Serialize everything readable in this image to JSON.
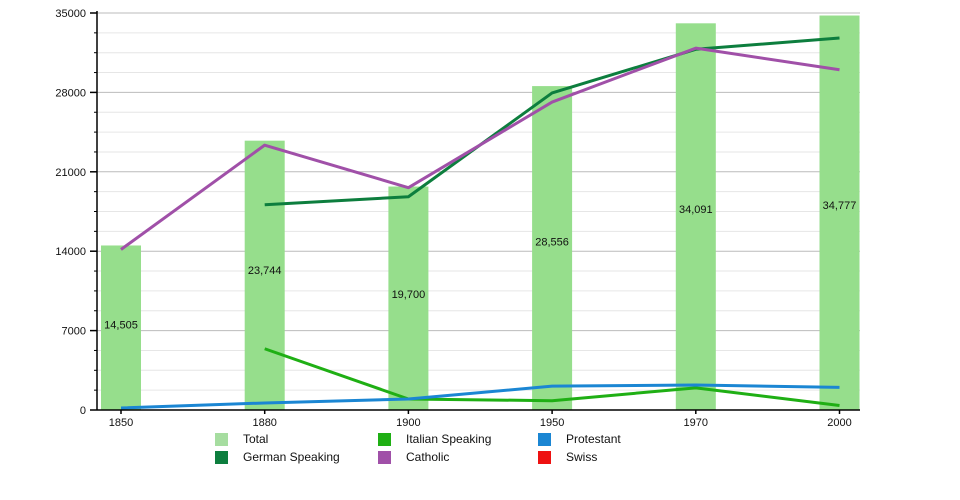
{
  "chart_data": {
    "type": "bar",
    "title": "",
    "xlabel": "",
    "ylabel": "",
    "categories": [
      "1850",
      "1880",
      "1900",
      "1950",
      "1970",
      "2000"
    ],
    "ylim": [
      0,
      35000
    ],
    "y_ticks": [
      0,
      7000,
      14000,
      21000,
      28000,
      35000
    ],
    "y_minor_step": 1750,
    "grid": "horizontal-major-and-minor",
    "legend_position": "bottom",
    "bar_series": {
      "name": "Total",
      "color": "#96de8c",
      "values": [
        14505,
        23744,
        19700,
        28556,
        34091,
        34777
      ],
      "value_labels": [
        "14,505",
        "23,744",
        "19,700",
        "28,556",
        "34,091",
        "34,777"
      ]
    },
    "line_series": [
      {
        "name": "German Speaking",
        "color": "#0d7e3e",
        "values": [
          null,
          18100,
          18800,
          27950,
          31800,
          32800
        ]
      },
      {
        "name": "Italian Speaking",
        "color": "#1faf14",
        "values": [
          null,
          5400,
          970,
          820,
          1950,
          400
        ]
      },
      {
        "name": "Catholic",
        "color": "#a050a8",
        "values": [
          14150,
          23350,
          19600,
          27150,
          31900,
          30000
        ]
      },
      {
        "name": "Protestant",
        "color": "#1b86d3",
        "values": [
          175,
          620,
          970,
          2100,
          2200,
          2000
        ]
      },
      {
        "name": "Swiss",
        "color": "#ee1111",
        "values": [
          null,
          null,
          null,
          null,
          null,
          null
        ]
      }
    ],
    "colors": {
      "axis": "#000000",
      "major_grid": "#bbbbbb",
      "minor_grid": "#e6e6e6",
      "tick_label": "#111111",
      "bar_value_label": "#111111"
    }
  },
  "legend": {
    "columns": [
      [
        {
          "label": "Total",
          "color": "#a6dda0"
        },
        {
          "label": "German Speaking",
          "color": "#0d7e3e"
        }
      ],
      [
        {
          "label": "Italian Speaking",
          "color": "#1faf14"
        },
        {
          "label": "Catholic",
          "color": "#a050a8"
        }
      ],
      [
        {
          "label": "Protestant",
          "color": "#1b86d3"
        },
        {
          "label": "Swiss",
          "color": "#ee1111"
        }
      ]
    ]
  }
}
